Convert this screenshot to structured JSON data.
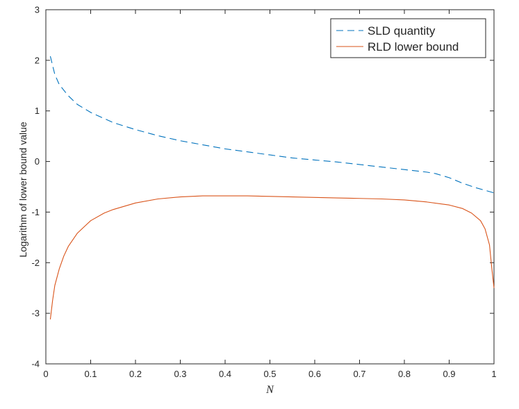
{
  "chart_data": {
    "type": "line",
    "title": "",
    "xlabel": "N",
    "ylabel": "Logarithm of lower bound value",
    "xlim": [
      0,
      1
    ],
    "ylim": [
      -4,
      3
    ],
    "x_ticks": [
      0,
      0.1,
      0.2,
      0.3,
      0.4,
      0.5,
      0.6,
      0.7,
      0.8,
      0.9,
      1
    ],
    "x_tick_labels": [
      "0",
      "0.1",
      "0.2",
      "0.3",
      "0.4",
      "0.5",
      "0.6",
      "0.7",
      "0.8",
      "0.9",
      "1"
    ],
    "y_ticks": [
      -4,
      -3,
      -2,
      -1,
      0,
      1,
      2,
      3
    ],
    "y_tick_labels": [
      "-4",
      "-3",
      "-2",
      "-1",
      "0",
      "1",
      "2",
      "3"
    ],
    "grid": false,
    "legend_position": "top-right",
    "series": [
      {
        "name": "SLD quantity",
        "color": "#0072BD",
        "style": "dashed",
        "points": [
          [
            0.01,
            2.08
          ],
          [
            0.02,
            1.72
          ],
          [
            0.03,
            1.52
          ],
          [
            0.05,
            1.3
          ],
          [
            0.07,
            1.13
          ],
          [
            0.1,
            0.97
          ],
          [
            0.15,
            0.77
          ],
          [
            0.2,
            0.63
          ],
          [
            0.25,
            0.51
          ],
          [
            0.3,
            0.41
          ],
          [
            0.35,
            0.33
          ],
          [
            0.4,
            0.25
          ],
          [
            0.45,
            0.19
          ],
          [
            0.5,
            0.13
          ],
          [
            0.55,
            0.07
          ],
          [
            0.6,
            0.03
          ],
          [
            0.65,
            -0.01
          ],
          [
            0.7,
            -0.06
          ],
          [
            0.75,
            -0.11
          ],
          [
            0.8,
            -0.16
          ],
          [
            0.85,
            -0.21
          ],
          [
            0.87,
            -0.24
          ],
          [
            0.9,
            -0.32
          ],
          [
            0.93,
            -0.43
          ],
          [
            0.96,
            -0.52
          ],
          [
            0.98,
            -0.57
          ],
          [
            1.0,
            -0.62
          ]
        ]
      },
      {
        "name": "RLD lower bound",
        "color": "#D95319",
        "style": "solid",
        "points": [
          [
            0.01,
            -3.12
          ],
          [
            0.015,
            -2.75
          ],
          [
            0.02,
            -2.45
          ],
          [
            0.03,
            -2.12
          ],
          [
            0.04,
            -1.87
          ],
          [
            0.05,
            -1.68
          ],
          [
            0.07,
            -1.42
          ],
          [
            0.1,
            -1.17
          ],
          [
            0.13,
            -1.02
          ],
          [
            0.15,
            -0.95
          ],
          [
            0.2,
            -0.82
          ],
          [
            0.25,
            -0.74
          ],
          [
            0.3,
            -0.7
          ],
          [
            0.35,
            -0.68
          ],
          [
            0.4,
            -0.68
          ],
          [
            0.45,
            -0.68
          ],
          [
            0.5,
            -0.69
          ],
          [
            0.55,
            -0.7
          ],
          [
            0.6,
            -0.71
          ],
          [
            0.65,
            -0.72
          ],
          [
            0.7,
            -0.73
          ],
          [
            0.75,
            -0.74
          ],
          [
            0.8,
            -0.76
          ],
          [
            0.85,
            -0.8
          ],
          [
            0.9,
            -0.86
          ],
          [
            0.93,
            -0.93
          ],
          [
            0.95,
            -1.02
          ],
          [
            0.97,
            -1.17
          ],
          [
            0.98,
            -1.33
          ],
          [
            0.99,
            -1.65
          ],
          [
            0.995,
            -2.1
          ],
          [
            1.0,
            -2.5
          ]
        ]
      }
    ]
  }
}
